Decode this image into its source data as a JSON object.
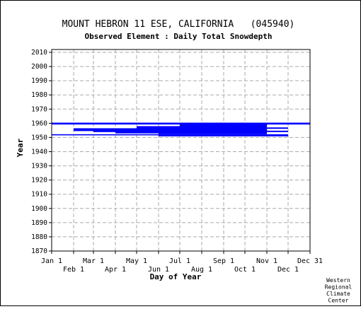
{
  "chart_data": {
    "type": "bar",
    "title": "MOUNT HEBRON 11 ESE, CALIFORNIA   (045940)",
    "subtitle": "Observed Element : Daily Total Snowdepth",
    "xlabel": "Day of Year",
    "ylabel": "Year",
    "ylim": [
      1870,
      2012
    ],
    "xlim": [
      1,
      366
    ],
    "yticks": [
      1870,
      1880,
      1890,
      1900,
      1910,
      1920,
      1930,
      1940,
      1950,
      1960,
      1970,
      1980,
      1990,
      2000,
      2010
    ],
    "xticks_top": [
      {
        "label": "Jan 1",
        "day": 1
      },
      {
        "label": "Mar 1",
        "day": 60
      },
      {
        "label": "May 1",
        "day": 121
      },
      {
        "label": "Jul 1",
        "day": 182
      },
      {
        "label": "Sep 1",
        "day": 244
      },
      {
        "label": "Nov 1",
        "day": 305
      },
      {
        "label": "Dec 31",
        "day": 366
      }
    ],
    "xticks_bottom": [
      {
        "label": "Feb 1",
        "day": 32
      },
      {
        "label": "Apr 1",
        "day": 91
      },
      {
        "label": "Jun 1",
        "day": 152
      },
      {
        "label": "Aug 1",
        "day": 213
      },
      {
        "label": "Oct 1",
        "day": 274
      },
      {
        "label": "Dec 1",
        "day": 335
      }
    ],
    "grid": true,
    "color": "#0000ff",
    "segments": [
      {
        "year": 1959.8,
        "start": 1,
        "end": 366,
        "thickness": 1.3
      },
      {
        "year": 1959.0,
        "start": 182,
        "end": 305,
        "thickness": 1.2
      },
      {
        "year": 1958.2,
        "start": 182,
        "end": 305,
        "thickness": 1.0
      },
      {
        "year": 1957.4,
        "start": 121,
        "end": 305,
        "thickness": 1.2
      },
      {
        "year": 1956.6,
        "start": 121,
        "end": 335,
        "thickness": 1.0
      },
      {
        "year": 1955.8,
        "start": 32,
        "end": 305,
        "thickness": 1.4
      },
      {
        "year": 1955.0,
        "start": 32,
        "end": 305,
        "thickness": 1.0
      },
      {
        "year": 1954.3,
        "start": 60,
        "end": 335,
        "thickness": 1.0
      },
      {
        "year": 1953.5,
        "start": 91,
        "end": 305,
        "thickness": 1.2
      },
      {
        "year": 1952.8,
        "start": 152,
        "end": 305,
        "thickness": 1.0
      },
      {
        "year": 1951.9,
        "start": 1,
        "end": 335,
        "thickness": 0.8
      },
      {
        "year": 1951.2,
        "start": 152,
        "end": 335,
        "thickness": 0.8
      }
    ]
  },
  "credit": [
    "Western",
    "Regional",
    "Climate",
    "Center"
  ]
}
